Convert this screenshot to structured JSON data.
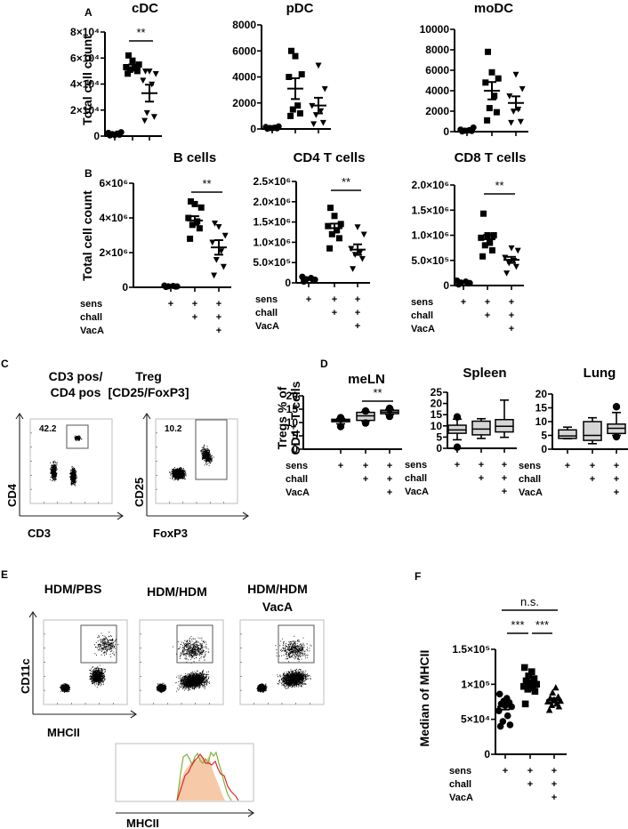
{
  "figure": {
    "panels": [
      "A",
      "B",
      "C",
      "D",
      "E",
      "F"
    ]
  },
  "conditions": {
    "row_labels": [
      "sens",
      "chall",
      "VacA"
    ],
    "groups": [
      {
        "sens": "+",
        "chall": "",
        "VacA": ""
      },
      {
        "sens": "+",
        "chall": "+",
        "VacA": ""
      },
      {
        "sens": "+",
        "chall": "+",
        "VacA": "+"
      }
    ]
  },
  "chart_data": [
    {
      "panel": "A",
      "type": "scatter",
      "title": "cDC",
      "ylabel": "Total cell count",
      "ylim": [
        0,
        80000
      ],
      "yticks": [
        "0",
        "2×10⁴",
        "4×10⁴",
        "6×10⁴",
        "8×10⁴"
      ],
      "ytick_values": [
        0,
        20000,
        40000,
        60000,
        80000
      ],
      "groups": [
        {
          "marker": "circle",
          "values": [
            500,
            1000,
            1500,
            2000,
            2500,
            3000,
            800
          ],
          "mean": 1500,
          "sem": 400
        },
        {
          "marker": "square",
          "values": [
            48000,
            50000,
            51000,
            52000,
            53000,
            55000,
            58000,
            62000
          ],
          "mean": 53000,
          "sem": 2000
        },
        {
          "marker": "triangle-down",
          "values": [
            12000,
            15000,
            18000,
            40000,
            43000,
            48000,
            50000,
            50000
          ],
          "mean": 33000,
          "sem": 6500
        }
      ],
      "significance": [
        {
          "from": 1,
          "to": 2,
          "label": "**"
        }
      ]
    },
    {
      "panel": "A",
      "type": "scatter",
      "title": "pDC",
      "ylabel": "",
      "ylim": [
        0,
        8000
      ],
      "yticks": [
        "0",
        "2000",
        "4000",
        "6000",
        "8000"
      ],
      "ytick_values": [
        0,
        2000,
        4000,
        6000,
        8000
      ],
      "groups": [
        {
          "marker": "circle",
          "values": [
            20,
            50,
            80,
            100,
            150,
            200,
            60
          ],
          "mean": 100,
          "sem": 25
        },
        {
          "marker": "square",
          "values": [
            1000,
            1200,
            1500,
            1800,
            4000,
            4200,
            5600,
            6000
          ],
          "mean": 3100,
          "sem": 800
        },
        {
          "marker": "triangle-down",
          "values": [
            400,
            500,
            1100,
            1400,
            1800,
            3100,
            4900
          ],
          "mean": 1800,
          "sem": 600
        }
      ],
      "significance": []
    },
    {
      "panel": "A",
      "type": "scatter",
      "title": "moDC",
      "ylabel": "",
      "ylim": [
        0,
        10000
      ],
      "yticks": [
        "0",
        "2000",
        "4000",
        "6000",
        "8000",
        "10000"
      ],
      "ytick_values": [
        0,
        2000,
        4000,
        6000,
        8000,
        10000
      ],
      "groups": [
        {
          "marker": "circle",
          "values": [
            20,
            60,
            100,
            150,
            200,
            400,
            80
          ],
          "mean": 100,
          "sem": 40
        },
        {
          "marker": "square",
          "values": [
            1100,
            1900,
            2300,
            3500,
            4800,
            5200,
            5800,
            7800
          ],
          "mean": 4000,
          "sem": 850
        },
        {
          "marker": "triangle-down",
          "values": [
            900,
            1000,
            2000,
            2200,
            3500,
            4200,
            5600
          ],
          "mean": 2800,
          "sem": 650
        }
      ],
      "significance": []
    },
    {
      "panel": "B",
      "type": "scatter",
      "title": "B cells",
      "ylabel": "Total cell count",
      "ylim": [
        0,
        6000000
      ],
      "yticks": [
        "0",
        "2×10⁶",
        "4×10⁶",
        "6×10⁶"
      ],
      "ytick_values": [
        0,
        2000000,
        4000000,
        6000000
      ],
      "groups": [
        {
          "marker": "circle",
          "values": [
            20000,
            40000,
            60000,
            80000,
            100000,
            50000
          ],
          "mean": 60000,
          "sem": 15000
        },
        {
          "marker": "square",
          "values": [
            2800000,
            3400000,
            3600000,
            3800000,
            4000000,
            4600000,
            4800000,
            4950000
          ],
          "mean": 3850000,
          "sem": 250000
        },
        {
          "marker": "triangle-down",
          "values": [
            700000,
            1200000,
            1600000,
            2100000,
            2600000,
            3000000,
            3500000,
            3700000
          ],
          "mean": 2300000,
          "sem": 420000
        }
      ],
      "significance": [
        {
          "from": 1,
          "to": 2,
          "label": "**"
        }
      ]
    },
    {
      "panel": "B",
      "type": "scatter",
      "title": "CD4 T cells",
      "ylabel": "",
      "ylim": [
        0,
        2500000
      ],
      "yticks": [
        "0",
        "5.0×10⁵",
        "1.0×10⁶",
        "1.5×10⁶",
        "2.0×10⁶",
        "2.5×10⁶"
      ],
      "ytick_values": [
        0,
        500000,
        1000000,
        1500000,
        2000000,
        2500000
      ],
      "groups": [
        {
          "marker": "circle",
          "values": [
            30000,
            60000,
            90000,
            120000,
            150000,
            80000
          ],
          "mean": 90000,
          "sem": 20000
        },
        {
          "marker": "square",
          "values": [
            850000,
            1100000,
            1200000,
            1300000,
            1400000,
            1450000,
            1650000,
            1850000
          ],
          "mean": 1350000,
          "sem": 110000
        },
        {
          "marker": "triangle-down",
          "values": [
            350000,
            600000,
            700000,
            750000,
            850000,
            1200000,
            1380000
          ],
          "mean": 820000,
          "sem": 130000
        }
      ],
      "significance": [
        {
          "from": 1,
          "to": 2,
          "label": "**"
        }
      ]
    },
    {
      "panel": "B",
      "type": "scatter",
      "title": "CD8 T cells",
      "ylabel": "",
      "ylim": [
        0,
        2000000
      ],
      "yticks": [
        "0",
        "5.0×10⁵",
        "1.0×10⁶",
        "1.5×10⁶",
        "2.0×10⁶"
      ],
      "ytick_values": [
        0,
        500000,
        1000000,
        1500000,
        2000000
      ],
      "groups": [
        {
          "marker": "circle",
          "values": [
            20000,
            40000,
            60000,
            80000,
            100000,
            50000
          ],
          "mean": 60000,
          "sem": 12000
        },
        {
          "marker": "square",
          "values": [
            580000,
            700000,
            800000,
            850000,
            950000,
            1000000,
            1000000,
            1430000
          ],
          "mean": 920000,
          "sem": 85000
        },
        {
          "marker": "triangle-down",
          "values": [
            250000,
            380000,
            450000,
            500000,
            560000,
            700000,
            750000
          ],
          "mean": 510000,
          "sem": 60000
        }
      ],
      "significance": [
        {
          "from": 1,
          "to": 2,
          "label": "**"
        }
      ]
    },
    {
      "panel": "D",
      "type": "box",
      "title": "meLN",
      "ylabel": "Tregs % of CD4⁺ T cells",
      "ylim": [
        0,
        20
      ],
      "yticks": [
        "0",
        "5",
        "10",
        "15",
        "20"
      ],
      "ytick_values": [
        0,
        5,
        10,
        15,
        20
      ],
      "boxes": [
        {
          "whisker_low": 9.5,
          "q1": 10.3,
          "median": 10.8,
          "q3": 11.2,
          "whisker_high": 11.5,
          "outliers": [
            8.5,
            11.8
          ]
        },
        {
          "whisker_low": 10.5,
          "q1": 10.8,
          "median": 12.5,
          "q3": 13.8,
          "whisker_high": 14.0,
          "outliers": [
            9.8,
            14.3
          ]
        },
        {
          "whisker_low": 13.0,
          "q1": 13.3,
          "median": 13.9,
          "q3": 14.6,
          "whisker_high": 14.9,
          "outliers": [
            12.3,
            15.3
          ]
        }
      ],
      "significance": [
        {
          "from": 1,
          "to": 2,
          "label": "**"
        }
      ]
    },
    {
      "panel": "D",
      "type": "box",
      "title": "Spleen",
      "ylabel": "",
      "ylim": [
        0,
        25
      ],
      "yticks": [
        "0",
        "5",
        "10",
        "15",
        "20",
        "25"
      ],
      "ytick_values": [
        0,
        5,
        10,
        15,
        20,
        25
      ],
      "boxes": [
        {
          "whisker_low": 3.8,
          "q1": 6.7,
          "median": 8.2,
          "q3": 10.3,
          "whisker_high": 13.0,
          "outliers": [
            0.5,
            14.0
          ]
        },
        {
          "whisker_low": 4.4,
          "q1": 6.0,
          "median": 8.6,
          "q3": 12.1,
          "whisker_high": 13.2,
          "outliers": []
        },
        {
          "whisker_low": 4.9,
          "q1": 7.3,
          "median": 9.8,
          "q3": 12.8,
          "whisker_high": 21.5,
          "outliers": []
        }
      ],
      "significance": []
    },
    {
      "panel": "D",
      "type": "box",
      "title": "Lung",
      "ylabel": "",
      "ylim": [
        0,
        20
      ],
      "yticks": [
        "0",
        "5",
        "10",
        "15",
        "20"
      ],
      "ytick_values": [
        0,
        5,
        10,
        15,
        20
      ],
      "boxes": [
        {
          "whisker_low": 3.8,
          "q1": 3.9,
          "median": 4.8,
          "q3": 7.0,
          "whisker_high": 8.0,
          "outliers": []
        },
        {
          "whisker_low": 2.0,
          "q1": 3.2,
          "median": 5.0,
          "q3": 10.0,
          "whisker_high": 11.4,
          "outliers": []
        },
        {
          "whisker_low": 5.0,
          "q1": 5.7,
          "median": 7.6,
          "q3": 9.1,
          "whisker_high": 13.3,
          "outliers": [
            4.5,
            15.4
          ]
        }
      ],
      "significance": []
    },
    {
      "panel": "F",
      "type": "scatter",
      "title": "",
      "ylabel": "Median of MHCII",
      "ylim": [
        0,
        150000
      ],
      "yticks": [
        "0",
        "5×10⁴",
        "1×10⁵",
        "1.5×10⁵"
      ],
      "ytick_values": [
        0,
        50000,
        100000,
        150000
      ],
      "groups": [
        {
          "marker": "circle",
          "values": [
            40000,
            42000,
            47000,
            55000,
            62000,
            68000,
            70000,
            72000,
            74000,
            76000,
            80000,
            86000
          ],
          "mean": 68000,
          "sem": 4000
        },
        {
          "marker": "square",
          "values": [
            72000,
            90000,
            93000,
            95000,
            97000,
            100000,
            102000,
            105000,
            108000,
            112000,
            118000,
            124000
          ],
          "mean": 99000,
          "sem": 4000
        },
        {
          "marker": "triangle-up",
          "values": [
            63000,
            68000,
            70000,
            72000,
            75000,
            76000,
            78000,
            80000,
            82000,
            88000,
            95000
          ],
          "mean": 77000,
          "sem": 3000
        }
      ],
      "significance": [
        {
          "from": 0,
          "to": 1,
          "label": "***",
          "level": 1
        },
        {
          "from": 1,
          "to": 2,
          "label": "***",
          "level": 1
        },
        {
          "from": 0,
          "to": 2,
          "label": "n.s.",
          "level": 2
        }
      ]
    }
  ],
  "facs_C": {
    "plots": [
      {
        "title_lines": [
          "CD3 pos/",
          "CD4 pos"
        ],
        "gate_value": "42.2",
        "xlabel": "CD3",
        "ylabel": "CD4"
      },
      {
        "title_lines": [
          "Treg",
          "[CD25/FoxP3]"
        ],
        "gate_value": "10.2",
        "xlabel": "FoxP3",
        "ylabel": "CD25"
      }
    ]
  },
  "facs_E": {
    "plots": [
      {
        "title_lines": [
          "HDM/PBS"
        ]
      },
      {
        "title_lines": [
          "HDM/HDM"
        ]
      },
      {
        "title_lines": [
          "HDM/HDM",
          "VacA"
        ]
      }
    ],
    "xlabel": "MHCII",
    "ylabel": "CD11c",
    "histogram": {
      "xlabel": "MHCII",
      "series": [
        {
          "name": "HDM/PBS",
          "style": "filled",
          "color": "#f6c9a8"
        },
        {
          "name": "HDM/HDM",
          "style": "line",
          "color": "#7fb23a"
        },
        {
          "name": "HDM/HDM VacA",
          "style": "line",
          "color": "#e0262b"
        }
      ]
    }
  }
}
